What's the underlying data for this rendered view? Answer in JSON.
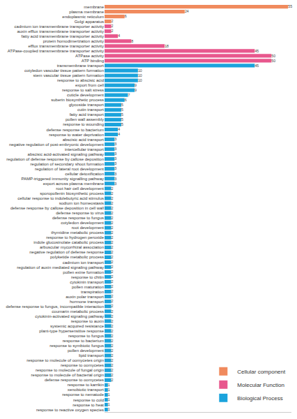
{
  "chart_data": {
    "type": "bar",
    "orientation": "horizontal",
    "data_labels": true,
    "tick_labels": "y",
    "legend": "lower right",
    "grid": false,
    "xlim": [
      0,
      56
    ],
    "categories": [
      "membrane",
      "plasma membrane",
      "endoplasmic reticulum",
      "Golgi apparatus",
      "cadmium ion transmembrane transporter activity",
      "auxin efflux transmembrane transporter activity",
      "fatty acid transmembrane transporter activity",
      "protein homodimerization activity",
      "efflux transmembrane transporter activity",
      "ATPase-coupled transmembrane transporter activity",
      "ATPase activity",
      "ATP binding",
      "transmembrane transport",
      "cotyledon vascular tissue pattern formation",
      "stem vascular tissue pattern formation",
      "response to abscisic acid",
      "export from cell",
      "response to salt stress",
      "cuticle development",
      "suberin biosynthetic process",
      "glycoside transport",
      "cutin transport",
      "fatty acid transport",
      "pollen wall assembly",
      "response to wounding",
      "defense response to bacterium",
      "response to water deprivation",
      "abscisic acid transport",
      "negative regulation of post-embryonic development",
      "intercellular transport",
      "abscisic acid-activated signaling pathway",
      "regulation of defense response by callose deposition",
      "regulation of secondary shoot formation",
      "regulation of lateral root development",
      "cellular detoxification",
      "PAMP-triggered immunity signalling pathway",
      "export across plasma membrane",
      "root hair cell development",
      "sporopollenin biosynthetic process",
      "cellular response to indolebutyric acid stimulus",
      "sodium ion homeostasis",
      "defense response by callose deposition in cell wall",
      "defense response to virus",
      "defense response to fungus",
      "cotyledon development",
      "root development",
      "thymidine metabolic process",
      "response to hydrogen peroxide",
      "indole glucosinolate catabolic process",
      "arbuscular mycorrhizal association",
      "negative regulation of defense response",
      "polyketide metabolic process",
      "cadmium ion transport",
      "regulation of auxin mediated signaling pathway",
      "pollen exine formation",
      "response to chitin",
      "cytokinin transport",
      "pollen maturation",
      "transpiration",
      "auxin polar transport",
      "hormone transport",
      "defense response to fungus, incompatible interaction",
      "coumarin metabolic process",
      "cytokinin-activated signaling pathway",
      "response to auxin",
      "systemic acquired resistance",
      "plant-type hypersensitive response",
      "response to fungus",
      "response to bacterium",
      "response to symbiotic fungus",
      "pollen development",
      "lipid transport",
      "response to molecule of oomycetes origin",
      "response to oomycetes",
      "response to molecule of fungal origin",
      "response to molecule of bacterial origin",
      "defense response to oomycetes",
      "response to karrikin",
      "xenobiotic transport",
      "response to nematode",
      "response to cold",
      "response to heat",
      "response to reactive oxygen species"
    ],
    "series": [
      {
        "name": "Cellular component",
        "color": "#f08a5d",
        "values": [
          55,
          24,
          6,
          2,
          null,
          null,
          null,
          null,
          null,
          null,
          null,
          null,
          null,
          null,
          null,
          null,
          null,
          null,
          null,
          null,
          null,
          null,
          null,
          null,
          null,
          null,
          null,
          null,
          null,
          null,
          null,
          null,
          null,
          null,
          null,
          null,
          null,
          null,
          null,
          null,
          null,
          null,
          null,
          null,
          null,
          null,
          null,
          null,
          null,
          null,
          null,
          null,
          null,
          null,
          null,
          null,
          null,
          null,
          null,
          null,
          null,
          null,
          null,
          null,
          null,
          null,
          null,
          null,
          null,
          null,
          null,
          null,
          null,
          null,
          null,
          null,
          null,
          null,
          null,
          null,
          null,
          null,
          null
        ]
      },
      {
        "name": "Molecular Function",
        "color": "#e8578d",
        "values": [
          null,
          null,
          null,
          null,
          2,
          2,
          4,
          8,
          18,
          45,
          50,
          50,
          null,
          null,
          null,
          null,
          null,
          null,
          null,
          null,
          null,
          null,
          null,
          null,
          null,
          null,
          null,
          null,
          null,
          null,
          null,
          null,
          null,
          null,
          null,
          null,
          null,
          null,
          null,
          null,
          null,
          null,
          null,
          null,
          null,
          null,
          null,
          null,
          null,
          null,
          null,
          null,
          null,
          null,
          null,
          null,
          null,
          null,
          null,
          null,
          null,
          null,
          null,
          null,
          null,
          null,
          null,
          null,
          null,
          null,
          null,
          null,
          null,
          null,
          null,
          null,
          null,
          null,
          null,
          null,
          null,
          null,
          null
        ]
      },
      {
        "name": "Biological Process",
        "color": "#1aa3dc",
        "values": [
          null,
          null,
          null,
          null,
          null,
          null,
          null,
          null,
          null,
          null,
          null,
          null,
          45,
          10,
          10,
          10,
          9,
          9,
          7,
          6,
          5,
          5,
          5,
          5,
          5,
          4,
          4,
          3,
          3,
          3,
          3,
          3,
          3,
          3,
          3,
          3,
          3,
          2,
          2,
          2,
          2,
          2,
          2,
          2,
          2,
          2,
          2,
          2,
          2,
          2,
          2,
          2,
          2,
          2,
          2,
          2,
          2,
          2,
          2,
          2,
          2,
          2,
          2,
          2,
          2,
          2,
          2,
          2,
          2,
          2,
          2,
          2,
          2,
          2,
          2,
          2,
          2,
          1,
          1,
          1,
          1,
          1,
          1
        ]
      }
    ]
  }
}
